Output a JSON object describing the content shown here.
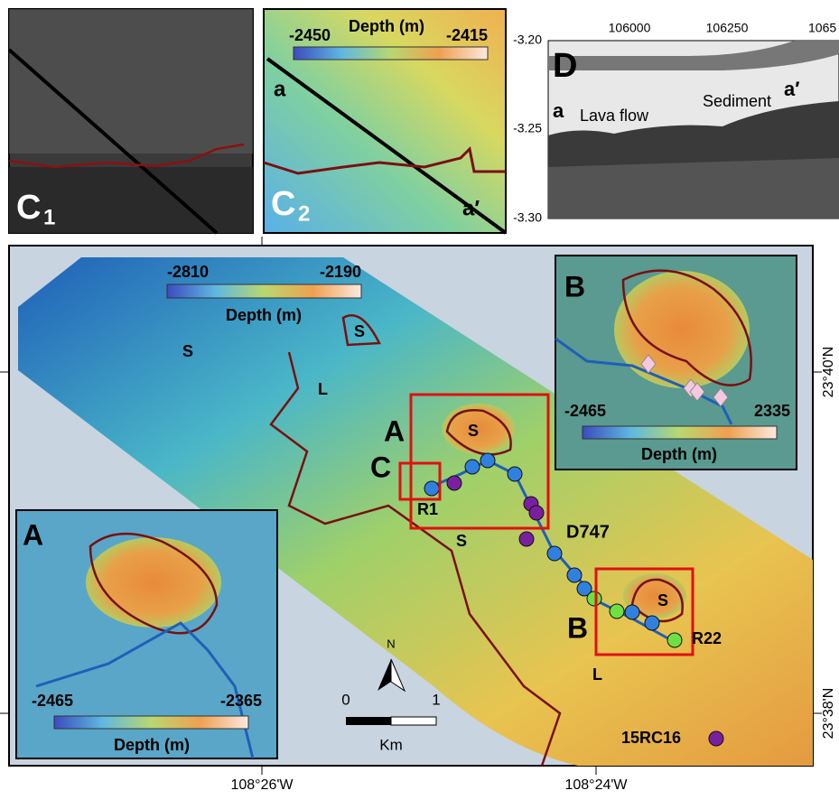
{
  "panel_c1": {
    "label": "C",
    "subscript": "1"
  },
  "panel_c2": {
    "label": "C",
    "subscript": "2",
    "colorbar": {
      "min": "-2450",
      "max": "-2415",
      "title": "Depth (m)"
    },
    "profile_start": "a",
    "profile_end": "a′"
  },
  "panel_d": {
    "label": "D",
    "profile_start": "a",
    "profile_end": "a′",
    "annotations": [
      "Lava flow",
      "Sediment"
    ],
    "y_ticks": [
      "-3.20",
      "-3.25",
      "-3.30"
    ],
    "x_ticks": [
      "106000",
      "106250",
      "1065"
    ]
  },
  "main_map": {
    "colorbar": {
      "min": "-2810",
      "max": "-2190",
      "title": "Depth (m)"
    },
    "labels": [
      "S",
      "L",
      "S",
      "A",
      "C",
      "R1",
      "S",
      "D747",
      "S",
      "B",
      "R22",
      "L",
      "15RC16"
    ],
    "north": "N",
    "scale": {
      "start": "0",
      "end": "1",
      "unit": "Km"
    },
    "latitudes": [
      "23°40'N",
      "23°38'N"
    ],
    "longitudes": [
      "108°26'W",
      "108°24'W"
    ]
  },
  "inset_b": {
    "label": "B",
    "colorbar": {
      "min": "-2465",
      "max": "2335",
      "title": "Depth (m)"
    }
  },
  "inset_a": {
    "label": "A",
    "colorbar": {
      "min": "-2465",
      "max": "-2365",
      "title": "Depth (m)"
    }
  }
}
